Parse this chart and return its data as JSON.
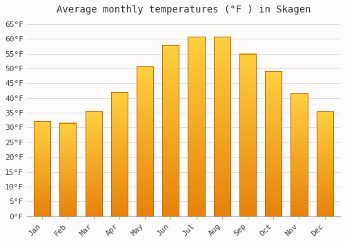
{
  "title": "Average monthly temperatures (°F ) in Skagen",
  "months": [
    "Jan",
    "Feb",
    "Mar",
    "Apr",
    "May",
    "Jun",
    "Jul",
    "Aug",
    "Sep",
    "Oct",
    "Nov",
    "Dec"
  ],
  "values": [
    32.2,
    31.6,
    35.4,
    42.1,
    50.7,
    57.9,
    60.8,
    60.8,
    55.0,
    49.1,
    41.5,
    35.4
  ],
  "bar_color_bottom": "#E8820C",
  "bar_color_top": "#FFD040",
  "bar_edge_color": "#C07010",
  "background_color": "#FDFAFA",
  "grid_color": "#DDDDDD",
  "yticks": [
    0,
    5,
    10,
    15,
    20,
    25,
    30,
    35,
    40,
    45,
    50,
    55,
    60,
    65
  ],
  "ylim": [
    0,
    67
  ],
  "title_fontsize": 10,
  "tick_fontsize": 8,
  "tick_font_family": "monospace"
}
